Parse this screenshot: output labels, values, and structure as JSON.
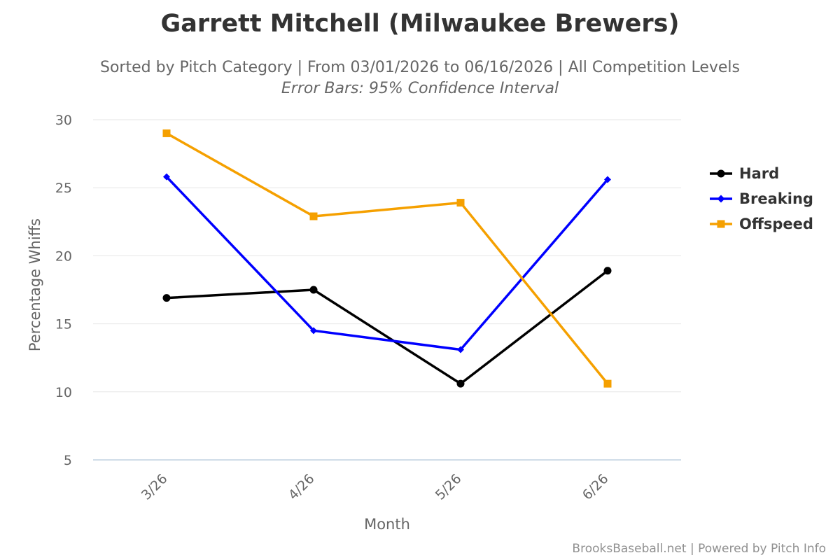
{
  "chart_data": {
    "type": "line",
    "title": "Garrett Mitchell (Milwaukee Brewers)",
    "subtitle": "Sorted by Pitch Category | From 03/01/2026 to 06/16/2026 | All Competition Levels",
    "subtitle2": "Error Bars: 95% Confidence Interval",
    "xlabel": "Month",
    "ylabel": "Percentage Whiffs",
    "categories": [
      "3/26",
      "4/26",
      "5/26",
      "6/26"
    ],
    "ylim": [
      5,
      30
    ],
    "yticks": [
      5,
      10,
      15,
      20,
      25,
      30
    ],
    "grid": true,
    "legend_position": "right",
    "series": [
      {
        "name": "Hard",
        "color": "#000000",
        "marker": "circle",
        "values": [
          16.9,
          17.5,
          10.6,
          18.9
        ]
      },
      {
        "name": "Breaking",
        "color": "#0000ff",
        "marker": "diamond",
        "values": [
          25.8,
          14.5,
          13.1,
          25.6
        ]
      },
      {
        "name": "Offspeed",
        "color": "#f5a000",
        "marker": "square",
        "values": [
          29.0,
          22.9,
          23.9,
          10.6
        ]
      }
    ]
  },
  "credits": "BrooksBaseball.net | Powered by Pitch Info"
}
